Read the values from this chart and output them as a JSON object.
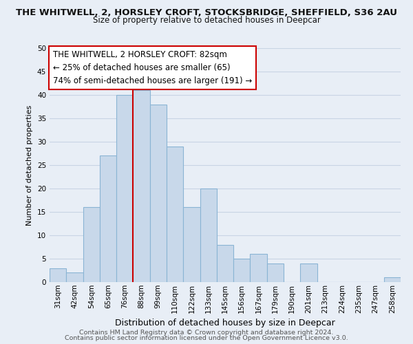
{
  "title_line1": "THE WHITWELL, 2, HORSLEY CROFT, STOCKSBRIDGE, SHEFFIELD, S36 2AU",
  "title_line2": "Size of property relative to detached houses in Deepcar",
  "xlabel": "Distribution of detached houses by size in Deepcar",
  "ylabel": "Number of detached properties",
  "footer_line1": "Contains HM Land Registry data © Crown copyright and database right 2024.",
  "footer_line2": "Contains public sector information licensed under the Open Government Licence v3.0.",
  "bin_labels": [
    "31sqm",
    "42sqm",
    "54sqm",
    "65sqm",
    "76sqm",
    "88sqm",
    "99sqm",
    "110sqm",
    "122sqm",
    "133sqm",
    "145sqm",
    "156sqm",
    "167sqm",
    "179sqm",
    "190sqm",
    "201sqm",
    "213sqm",
    "224sqm",
    "235sqm",
    "247sqm",
    "258sqm"
  ],
  "bar_heights": [
    3,
    2,
    16,
    27,
    40,
    41,
    38,
    29,
    16,
    20,
    8,
    5,
    6,
    4,
    0,
    4,
    0,
    0,
    0,
    0,
    1
  ],
  "bar_color": "#c8d8ea",
  "bar_edge_color": "#8ab4d4",
  "highlight_line_color": "#cc0000",
  "ylim": [
    0,
    50
  ],
  "yticks": [
    0,
    5,
    10,
    15,
    20,
    25,
    30,
    35,
    40,
    45,
    50
  ],
  "annotation_box_text_line1": "THE WHITWELL, 2 HORSLEY CROFT: 82sqm",
  "annotation_box_text_line2": "← 25% of detached houses are smaller (65)",
  "annotation_box_text_line3": "74% of semi-detached houses are larger (191) →",
  "annotation_box_color": "#ffffff",
  "annotation_box_edge_color": "#cc0000",
  "grid_color": "#c8d4e4",
  "background_color": "#e8eef6",
  "title1_fontsize": 9.5,
  "title2_fontsize": 8.5,
  "ylabel_fontsize": 8.0,
  "xlabel_fontsize": 9.0,
  "footer_fontsize": 6.8,
  "annotation_fontsize": 8.5,
  "tick_fontsize": 7.5
}
